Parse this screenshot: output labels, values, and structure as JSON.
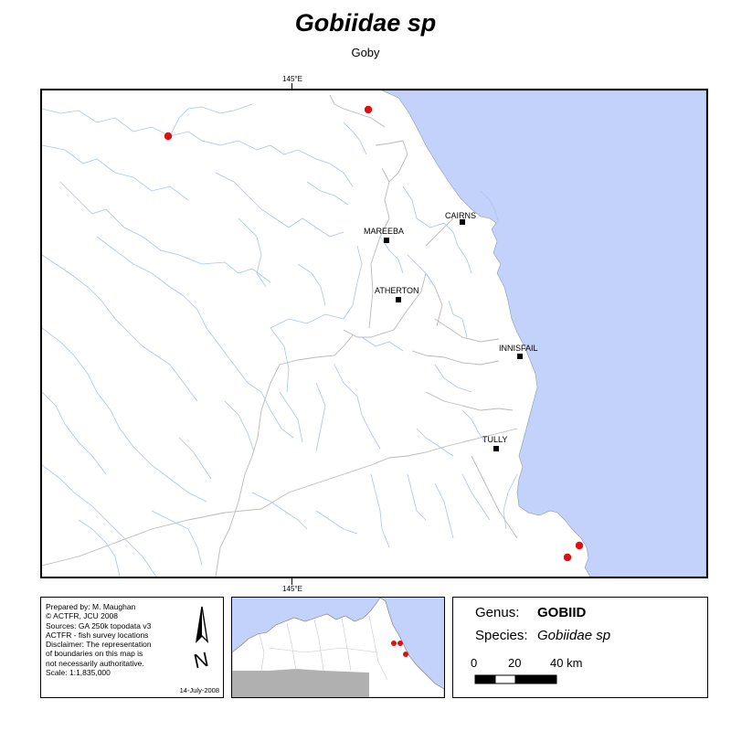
{
  "title": "Gobiidae sp",
  "subtitle": "Goby",
  "map": {
    "tick_top": "145°E",
    "tick_bottom": "145°E",
    "towns": [
      {
        "name": "CAIRNS"
      },
      {
        "name": "MAREEBA"
      },
      {
        "name": "ATHERTON"
      },
      {
        "name": "INNISFAIL"
      },
      {
        "name": "TULLY"
      }
    ],
    "colors": {
      "sea": "#c3d2fb",
      "river": "#a9c4ef",
      "boundary": "#b9b9b9",
      "record": "#e01010",
      "land": "#ffffff"
    }
  },
  "info": {
    "lines": [
      "Prepared by: M. Maughan",
      "© ACTFR, JCU 2008",
      "Sources: GA 250k topodata v3",
      "ACTFR - fish survey locations",
      "Disclaimer: The representation",
      "of boundaries on this map is",
      "not necessarily authoritative.",
      "Scale: 1:1,835,000"
    ],
    "date": "14-July-2008",
    "north_arrow": "N"
  },
  "inset": {
    "colors": {
      "sea": "#c3d2fb",
      "land": "#ffffff",
      "other_land": "#b0b0b0",
      "record": "#e01010"
    }
  },
  "legend": {
    "genus_label": "Genus:",
    "genus_value": "GOBIID",
    "species_label": "Species:",
    "species_value": "Gobiidae sp",
    "scale_ticks": [
      "0",
      "20",
      "40 km"
    ]
  }
}
